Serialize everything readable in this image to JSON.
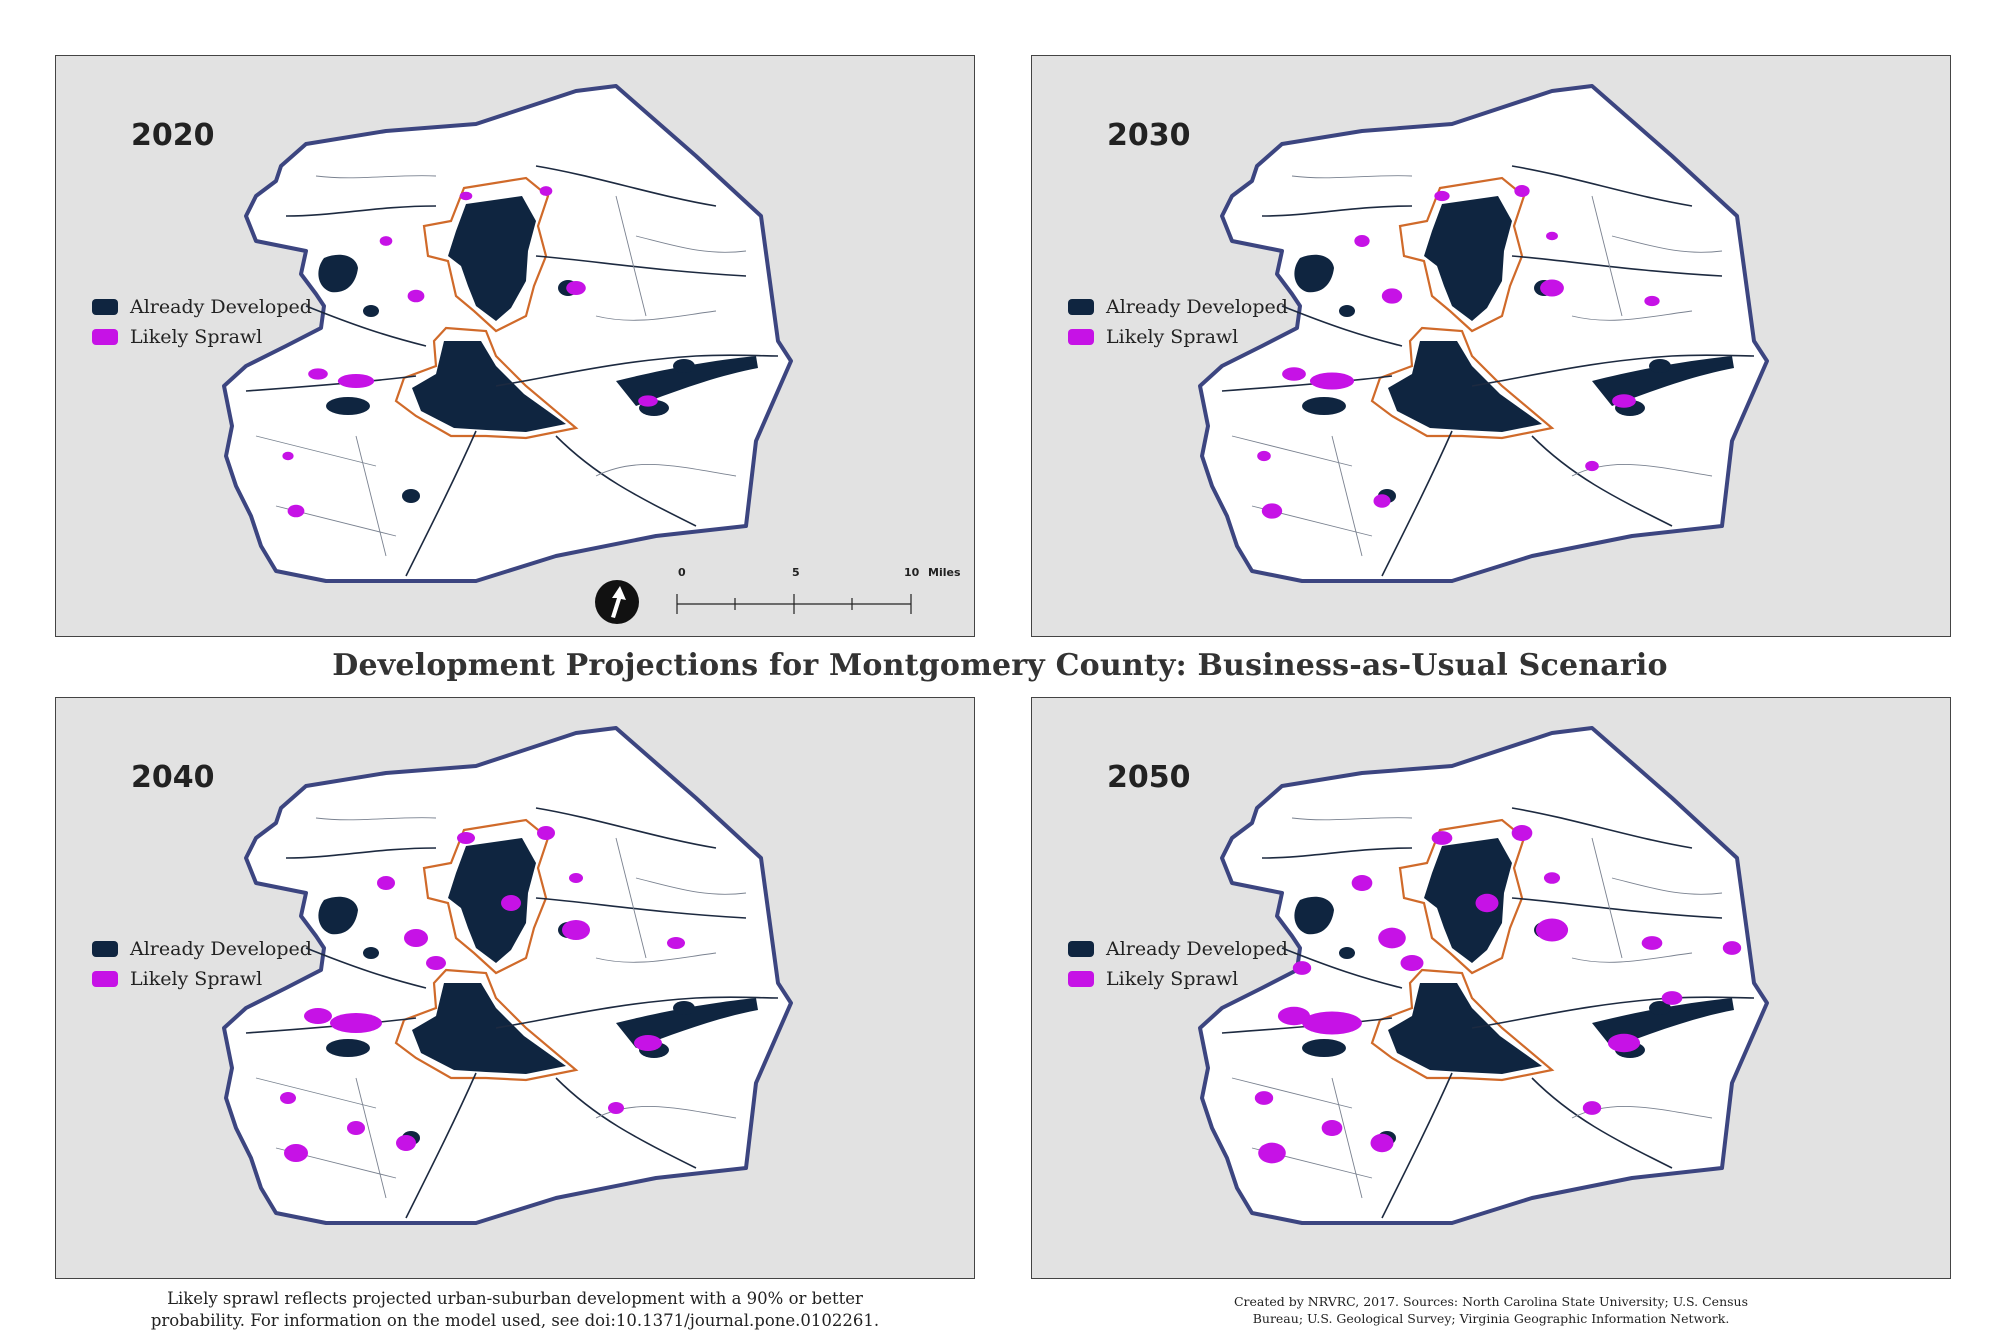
{
  "title": "Development Projections for Montgomery County: Business-as-Usual Scenario",
  "panels": [
    {
      "year": "2020",
      "sprawl_level": 0.25
    },
    {
      "year": "2030",
      "sprawl_level": 0.5
    },
    {
      "year": "2040",
      "sprawl_level": 0.75
    },
    {
      "year": "2050",
      "sprawl_level": 1.0
    }
  ],
  "legend": {
    "developed_label": "Already Developed",
    "sprawl_label": "Likely Sprawl"
  },
  "scale_bar": {
    "label_0": "0",
    "label_5": "5",
    "label_10": "10",
    "unit": "Miles"
  },
  "notes": {
    "left_line1": "Likely sprawl reflects projected urban-suburban development with a 90% or better",
    "left_line2": "probability. For information on the model used, see doi:10.1371/journal.pone.0102261.",
    "right_line1": "Created by NRVRC, 2017. Sources: North Carolina State University; U.S. Census",
    "right_line2": "Bureau; U.S. Geological Survey; Virginia Geographic Information Network."
  },
  "colors": {
    "developed": "#0f2540",
    "sprawl": "#c612e6",
    "county_outline": "#3c4580",
    "town_boundary": "#d06a2a",
    "panel_bg": "#e2e2e2"
  }
}
